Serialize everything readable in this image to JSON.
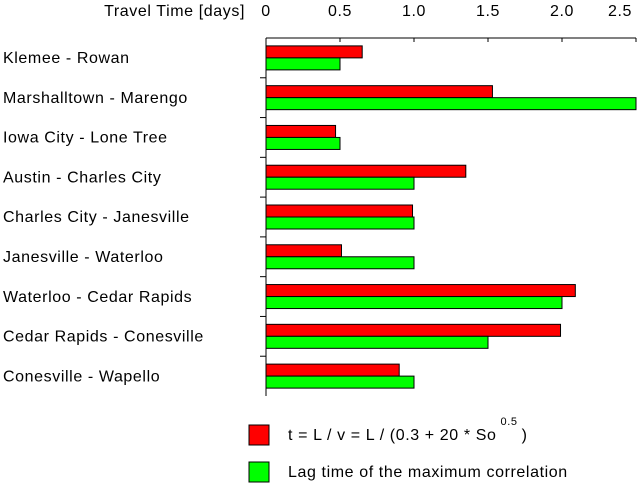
{
  "chart_data": {
    "type": "hbar",
    "x_label": "Travel Time [days]",
    "categories": [
      "Klemee - Rowan",
      "Marshalltown - Marengo",
      "Iowa City - Lone Tree",
      "Austin - Charles City",
      "Charles City - Janesville",
      "Janesville - Waterloo",
      "Waterloo - Cedar Rapids",
      "Cedar Rapids - Conesville",
      "Conesville - Wapello"
    ],
    "series": [
      {
        "name": "t = L / v = L / (0.3 + 20 * So",
        "name_superscript": "0.5",
        "name_suffix": ")",
        "color": "#ff0000",
        "values": [
          0.65,
          1.53,
          0.47,
          1.35,
          0.99,
          0.51,
          2.09,
          1.99,
          0.9
        ]
      },
      {
        "name": "Lag time of the maximum correlation",
        "color": "#00ff00",
        "values": [
          0.5,
          2.5,
          0.5,
          1.0,
          1.0,
          1.0,
          2.0,
          1.5,
          1.0
        ]
      }
    ],
    "xlim": [
      0,
      2.5
    ],
    "xticks": [
      0,
      0.5,
      {
        "value": 1,
        "label": "1.0"
      },
      1.5,
      {
        "value": 2,
        "label": "2.0"
      },
      2.5
    ],
    "grid": false
  }
}
